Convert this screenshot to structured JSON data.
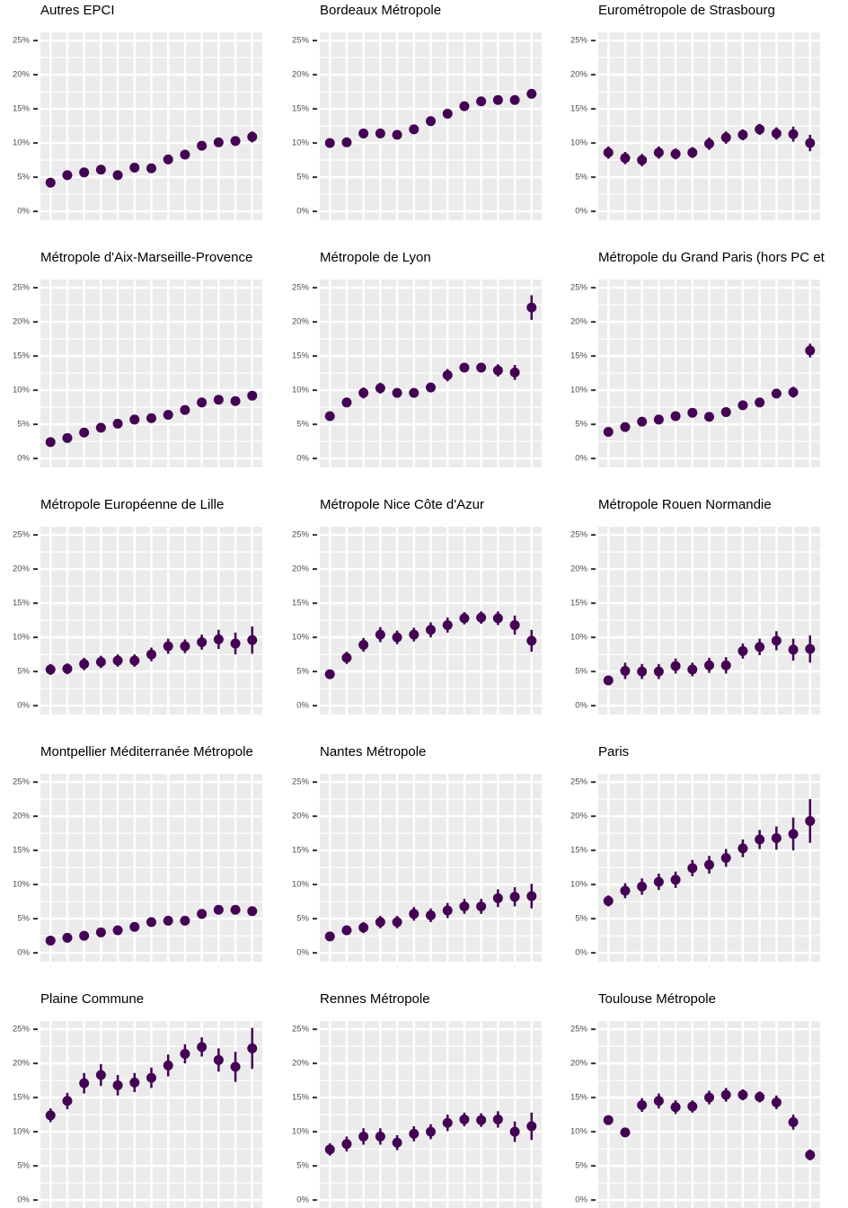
{
  "chart_data": [
    {
      "type": "pointrange",
      "title": "Autres EPCI",
      "color": "#440154",
      "categories": [
        null,
        null,
        null,
        null,
        null,
        null,
        null,
        null,
        null,
        null,
        null,
        null,
        null
      ],
      "values": [
        4.2,
        5.3,
        5.7,
        6.1,
        5.3,
        6.4,
        6.3,
        7.6,
        8.3,
        9.6,
        10.1,
        10.3,
        10.9
      ],
      "errors": [
        0.3,
        0.3,
        0.3,
        0.3,
        0.3,
        0.3,
        0.3,
        0.3,
        0.3,
        0.4,
        0.5,
        0.7,
        0.8
      ],
      "ylim": [
        -1.3,
        26.2
      ],
      "yticks": [
        {
          "value": 0,
          "label": "0%"
        },
        {
          "value": 5,
          "label": "5%"
        },
        {
          "value": 10,
          "label": "10%"
        },
        {
          "value": 15,
          "label": "15%"
        },
        {
          "value": 20,
          "label": "20%"
        },
        {
          "value": 25,
          "label": "25%"
        }
      ],
      "grid": true
    },
    {
      "type": "pointrange",
      "title": "Bordeaux Métropole",
      "color": "#440154",
      "categories": [
        null,
        null,
        null,
        null,
        null,
        null,
        null,
        null,
        null,
        null,
        null,
        null,
        null
      ],
      "values": [
        10.0,
        10.1,
        11.4,
        11.4,
        11.2,
        12.0,
        13.2,
        14.3,
        15.4,
        16.1,
        16.3,
        16.3,
        17.2
      ],
      "errors": [
        0.3,
        0.3,
        0.3,
        0.3,
        0.3,
        0.3,
        0.3,
        0.3,
        0.3,
        0.3,
        0.3,
        0.3,
        0.4
      ],
      "ylim": [
        -1.3,
        26.2
      ],
      "yticks": [
        {
          "value": 0,
          "label": "0%"
        },
        {
          "value": 5,
          "label": "5%"
        },
        {
          "value": 10,
          "label": "10%"
        },
        {
          "value": 15,
          "label": "15%"
        },
        {
          "value": 20,
          "label": "20%"
        },
        {
          "value": 25,
          "label": "25%"
        }
      ],
      "grid": true
    },
    {
      "type": "pointrange",
      "title": "Eurométropole de Strasbourg",
      "color": "#440154",
      "categories": [
        null,
        null,
        null,
        null,
        null,
        null,
        null,
        null,
        null,
        null,
        null,
        null,
        null
      ],
      "values": [
        8.6,
        7.8,
        7.5,
        8.6,
        8.4,
        8.6,
        9.9,
        10.8,
        11.2,
        12.0,
        11.4,
        11.3,
        10.0
      ],
      "errors": [
        0.9,
        0.9,
        0.9,
        0.9,
        0.8,
        0.8,
        0.9,
        0.9,
        0.8,
        0.8,
        0.9,
        1.1,
        1.2
      ],
      "ylim": [
        -1.3,
        26.2
      ],
      "yticks": [
        {
          "value": 0,
          "label": "0%"
        },
        {
          "value": 5,
          "label": "5%"
        },
        {
          "value": 10,
          "label": "10%"
        },
        {
          "value": 15,
          "label": "15%"
        },
        {
          "value": 20,
          "label": "20%"
        },
        {
          "value": 25,
          "label": "25%"
        }
      ],
      "grid": true
    },
    {
      "type": "pointrange",
      "title": "Métropole d'Aix-Marseille-Provence",
      "color": "#440154",
      "categories": [
        null,
        null,
        null,
        null,
        null,
        null,
        null,
        null,
        null,
        null,
        null,
        null,
        null
      ],
      "values": [
        2.4,
        3.0,
        3.8,
        4.5,
        5.1,
        5.7,
        5.9,
        6.4,
        7.1,
        8.2,
        8.6,
        8.4,
        9.2
      ],
      "errors": [
        0.3,
        0.3,
        0.3,
        0.3,
        0.3,
        0.3,
        0.3,
        0.3,
        0.3,
        0.3,
        0.3,
        0.3,
        0.4
      ],
      "ylim": [
        -1.3,
        26.2
      ],
      "yticks": [
        {
          "value": 0,
          "label": "0%"
        },
        {
          "value": 5,
          "label": "5%"
        },
        {
          "value": 10,
          "label": "10%"
        },
        {
          "value": 15,
          "label": "15%"
        },
        {
          "value": 20,
          "label": "20%"
        },
        {
          "value": 25,
          "label": "25%"
        }
      ],
      "grid": true
    },
    {
      "type": "pointrange",
      "title": "Métropole de Lyon",
      "color": "#440154",
      "categories": [
        null,
        null,
        null,
        null,
        null,
        null,
        null,
        null,
        null,
        null,
        null,
        null,
        null
      ],
      "values": [
        6.2,
        8.2,
        9.6,
        10.3,
        9.6,
        9.6,
        10.4,
        12.2,
        13.3,
        13.3,
        12.9,
        12.6,
        22.1
      ],
      "errors": [
        0.5,
        0.6,
        0.8,
        0.8,
        0.6,
        0.5,
        0.7,
        0.9,
        0.6,
        0.7,
        0.9,
        1.1,
        1.8
      ],
      "ylim": [
        -1.3,
        26.2
      ],
      "yticks": [
        {
          "value": 0,
          "label": "0%"
        },
        {
          "value": 5,
          "label": "5%"
        },
        {
          "value": 10,
          "label": "10%"
        },
        {
          "value": 15,
          "label": "15%"
        },
        {
          "value": 20,
          "label": "20%"
        },
        {
          "value": 25,
          "label": "25%"
        }
      ],
      "grid": true
    },
    {
      "type": "pointrange",
      "title": "Métropole du Grand Paris (hors PC et",
      "color": "#440154",
      "categories": [
        null,
        null,
        null,
        null,
        null,
        null,
        null,
        null,
        null,
        null,
        null,
        null,
        null
      ],
      "values": [
        3.9,
        4.6,
        5.4,
        5.7,
        6.2,
        6.7,
        6.1,
        6.8,
        7.8,
        8.2,
        9.5,
        9.7,
        15.8
      ],
      "errors": [
        0.3,
        0.3,
        0.3,
        0.3,
        0.3,
        0.3,
        0.3,
        0.4,
        0.4,
        0.4,
        0.5,
        0.8,
        1.0
      ],
      "ylim": [
        -1.3,
        26.2
      ],
      "yticks": [
        {
          "value": 0,
          "label": "0%"
        },
        {
          "value": 5,
          "label": "5%"
        },
        {
          "value": 10,
          "label": "10%"
        },
        {
          "value": 15,
          "label": "15%"
        },
        {
          "value": 20,
          "label": "20%"
        },
        {
          "value": 25,
          "label": "25%"
        }
      ],
      "grid": true
    },
    {
      "type": "pointrange",
      "title": "Métropole Européenne de Lille",
      "color": "#440154",
      "categories": [
        null,
        null,
        null,
        null,
        null,
        null,
        null,
        null,
        null,
        null,
        null,
        null,
        null
      ],
      "values": [
        5.3,
        5.4,
        6.1,
        6.4,
        6.6,
        6.6,
        7.5,
        8.7,
        8.7,
        9.3,
        9.7,
        9.1,
        9.6
      ],
      "errors": [
        0.8,
        0.8,
        0.9,
        0.9,
        0.9,
        0.9,
        1.0,
        1.1,
        1.0,
        1.1,
        1.4,
        1.6,
        2.0
      ],
      "ylim": [
        -1.3,
        26.2
      ],
      "yticks": [
        {
          "value": 0,
          "label": "0%"
        },
        {
          "value": 5,
          "label": "5%"
        },
        {
          "value": 10,
          "label": "10%"
        },
        {
          "value": 15,
          "label": "15%"
        },
        {
          "value": 20,
          "label": "20%"
        },
        {
          "value": 25,
          "label": "25%"
        }
      ],
      "grid": true
    },
    {
      "type": "pointrange",
      "title": "Métropole Nice Côte d'Azur",
      "color": "#440154",
      "categories": [
        null,
        null,
        null,
        null,
        null,
        null,
        null,
        null,
        null,
        null,
        null,
        null,
        null
      ],
      "values": [
        4.6,
        7.0,
        8.9,
        10.4,
        10.0,
        10.4,
        11.1,
        11.8,
        12.8,
        12.9,
        12.8,
        11.8,
        9.5
      ],
      "errors": [
        0.6,
        0.9,
        1.0,
        1.1,
        1.0,
        1.0,
        1.1,
        1.1,
        0.9,
        0.9,
        1.0,
        1.4,
        1.6
      ],
      "ylim": [
        -1.3,
        26.2
      ],
      "yticks": [
        {
          "value": 0,
          "label": "0%"
        },
        {
          "value": 5,
          "label": "5%"
        },
        {
          "value": 10,
          "label": "10%"
        },
        {
          "value": 15,
          "label": "15%"
        },
        {
          "value": 20,
          "label": "20%"
        },
        {
          "value": 25,
          "label": "25%"
        }
      ],
      "grid": true
    },
    {
      "type": "pointrange",
      "title": "Métropole Rouen Normandie",
      "color": "#440154",
      "categories": [
        null,
        null,
        null,
        null,
        null,
        null,
        null,
        null,
        null,
        null,
        null,
        null,
        null
      ],
      "values": [
        3.7,
        5.1,
        5.0,
        5.0,
        5.8,
        5.3,
        5.9,
        5.9,
        8.0,
        8.6,
        9.5,
        8.2,
        8.3
      ],
      "errors": [
        0.7,
        1.2,
        1.1,
        1.1,
        1.1,
        1.0,
        1.1,
        1.2,
        1.1,
        1.2,
        1.4,
        1.6,
        2.0
      ],
      "ylim": [
        -1.3,
        26.2
      ],
      "yticks": [
        {
          "value": 0,
          "label": "0%"
        },
        {
          "value": 5,
          "label": "5%"
        },
        {
          "value": 10,
          "label": "10%"
        },
        {
          "value": 15,
          "label": "15%"
        },
        {
          "value": 20,
          "label": "20%"
        },
        {
          "value": 25,
          "label": "25%"
        }
      ],
      "grid": true
    },
    {
      "type": "pointrange",
      "title": "Montpellier Méditerranée Métropole",
      "color": "#440154",
      "categories": [
        null,
        null,
        null,
        null,
        null,
        null,
        null,
        null,
        null,
        null,
        null,
        null,
        null
      ],
      "values": [
        1.8,
        2.2,
        2.5,
        3.0,
        3.3,
        3.8,
        4.5,
        4.7,
        4.7,
        5.7,
        6.3,
        6.3,
        6.1
      ],
      "errors": [
        0.3,
        0.3,
        0.3,
        0.3,
        0.3,
        0.3,
        0.3,
        0.3,
        0.3,
        0.3,
        0.3,
        0.3,
        0.3
      ],
      "ylim": [
        -1.3,
        26.2
      ],
      "yticks": [
        {
          "value": 0,
          "label": "0%"
        },
        {
          "value": 5,
          "label": "5%"
        },
        {
          "value": 10,
          "label": "10%"
        },
        {
          "value": 15,
          "label": "15%"
        },
        {
          "value": 20,
          "label": "20%"
        },
        {
          "value": 25,
          "label": "25%"
        }
      ],
      "grid": true
    },
    {
      "type": "pointrange",
      "title": "Nantes Métropole",
      "color": "#440154",
      "categories": [
        null,
        null,
        null,
        null,
        null,
        null,
        null,
        null,
        null,
        null,
        null,
        null,
        null
      ],
      "values": [
        2.4,
        3.3,
        3.7,
        4.5,
        4.5,
        5.7,
        5.5,
        6.2,
        6.8,
        6.8,
        8.0,
        8.2,
        8.3
      ],
      "errors": [
        0.5,
        0.7,
        0.8,
        0.9,
        0.9,
        1.0,
        1.0,
        1.1,
        1.1,
        1.1,
        1.3,
        1.4,
        1.8
      ],
      "ylim": [
        -1.3,
        26.2
      ],
      "yticks": [
        {
          "value": 0,
          "label": "0%"
        },
        {
          "value": 5,
          "label": "5%"
        },
        {
          "value": 10,
          "label": "10%"
        },
        {
          "value": 15,
          "label": "15%"
        },
        {
          "value": 20,
          "label": "20%"
        },
        {
          "value": 25,
          "label": "25%"
        }
      ],
      "grid": true
    },
    {
      "type": "pointrange",
      "title": "Paris",
      "color": "#440154",
      "categories": [
        null,
        null,
        null,
        null,
        null,
        null,
        null,
        null,
        null,
        null,
        null,
        null,
        null
      ],
      "values": [
        7.6,
        9.1,
        9.7,
        10.4,
        10.7,
        12.4,
        12.9,
        13.9,
        15.3,
        16.6,
        16.8,
        17.4,
        19.3
      ],
      "errors": [
        0.8,
        1.1,
        1.2,
        1.2,
        1.2,
        1.2,
        1.3,
        1.3,
        1.3,
        1.4,
        1.7,
        2.4,
        3.2
      ],
      "ylim": [
        -1.3,
        26.2
      ],
      "yticks": [
        {
          "value": 0,
          "label": "0%"
        },
        {
          "value": 5,
          "label": "5%"
        },
        {
          "value": 10,
          "label": "10%"
        },
        {
          "value": 15,
          "label": "15%"
        },
        {
          "value": 20,
          "label": "20%"
        },
        {
          "value": 25,
          "label": "25%"
        }
      ],
      "grid": true
    },
    {
      "type": "pointrange",
      "title": "Plaine Commune",
      "color": "#440154",
      "categories": [
        null,
        null,
        null,
        null,
        null,
        null,
        null,
        null,
        null,
        null,
        null,
        null,
        null
      ],
      "values": [
        12.4,
        14.5,
        17.1,
        18.3,
        16.8,
        17.2,
        17.9,
        19.7,
        21.4,
        22.4,
        20.5,
        19.5,
        22.2
      ],
      "errors": [
        1.0,
        1.2,
        1.5,
        1.6,
        1.5,
        1.4,
        1.5,
        1.6,
        1.4,
        1.4,
        1.7,
        2.2,
        3.0
      ],
      "ylim": [
        -1.3,
        26.2
      ],
      "yticks": [
        {
          "value": 0,
          "label": "0%"
        },
        {
          "value": 5,
          "label": "5%"
        },
        {
          "value": 10,
          "label": "10%"
        },
        {
          "value": 15,
          "label": "15%"
        },
        {
          "value": 20,
          "label": "20%"
        },
        {
          "value": 25,
          "label": "25%"
        }
      ],
      "grid": true
    },
    {
      "type": "pointrange",
      "title": "Rennes Métropole",
      "color": "#440154",
      "categories": [
        null,
        null,
        null,
        null,
        null,
        null,
        null,
        null,
        null,
        null,
        null,
        null,
        null
      ],
      "values": [
        7.4,
        8.2,
        9.3,
        9.3,
        8.4,
        9.7,
        10.0,
        11.3,
        11.8,
        11.7,
        11.8,
        10.0,
        10.8
      ],
      "errors": [
        0.9,
        1.1,
        1.2,
        1.2,
        1.1,
        1.1,
        1.1,
        1.2,
        1.0,
        1.0,
        1.2,
        1.5,
        2.0
      ],
      "ylim": [
        -1.3,
        26.2
      ],
      "yticks": [
        {
          "value": 0,
          "label": "0%"
        },
        {
          "value": 5,
          "label": "5%"
        },
        {
          "value": 10,
          "label": "10%"
        },
        {
          "value": 15,
          "label": "15%"
        },
        {
          "value": 20,
          "label": "20%"
        },
        {
          "value": 25,
          "label": "25%"
        }
      ],
      "grid": true
    },
    {
      "type": "pointrange",
      "title": "Toulouse Métropole",
      "color": "#440154",
      "categories": [
        null,
        null,
        null,
        null,
        null,
        null,
        null,
        null,
        null,
        null,
        null,
        null,
        null
      ],
      "values": [
        11.7,
        9.9,
        13.9,
        14.5,
        13.6,
        13.7,
        15.0,
        15.4,
        15.4,
        15.1,
        14.3,
        11.4,
        6.6
      ],
      "errors": [
        0.7,
        0.7,
        1.0,
        1.1,
        1.0,
        0.9,
        1.0,
        1.0,
        0.8,
        0.8,
        1.0,
        1.1,
        0.8
      ],
      "ylim": [
        -1.3,
        26.2
      ],
      "yticks": [
        {
          "value": 0,
          "label": "0%"
        },
        {
          "value": 5,
          "label": "5%"
        },
        {
          "value": 10,
          "label": "10%"
        },
        {
          "value": 15,
          "label": "15%"
        },
        {
          "value": 20,
          "label": "20%"
        },
        {
          "value": 25,
          "label": "25%"
        }
      ],
      "grid": true
    }
  ]
}
